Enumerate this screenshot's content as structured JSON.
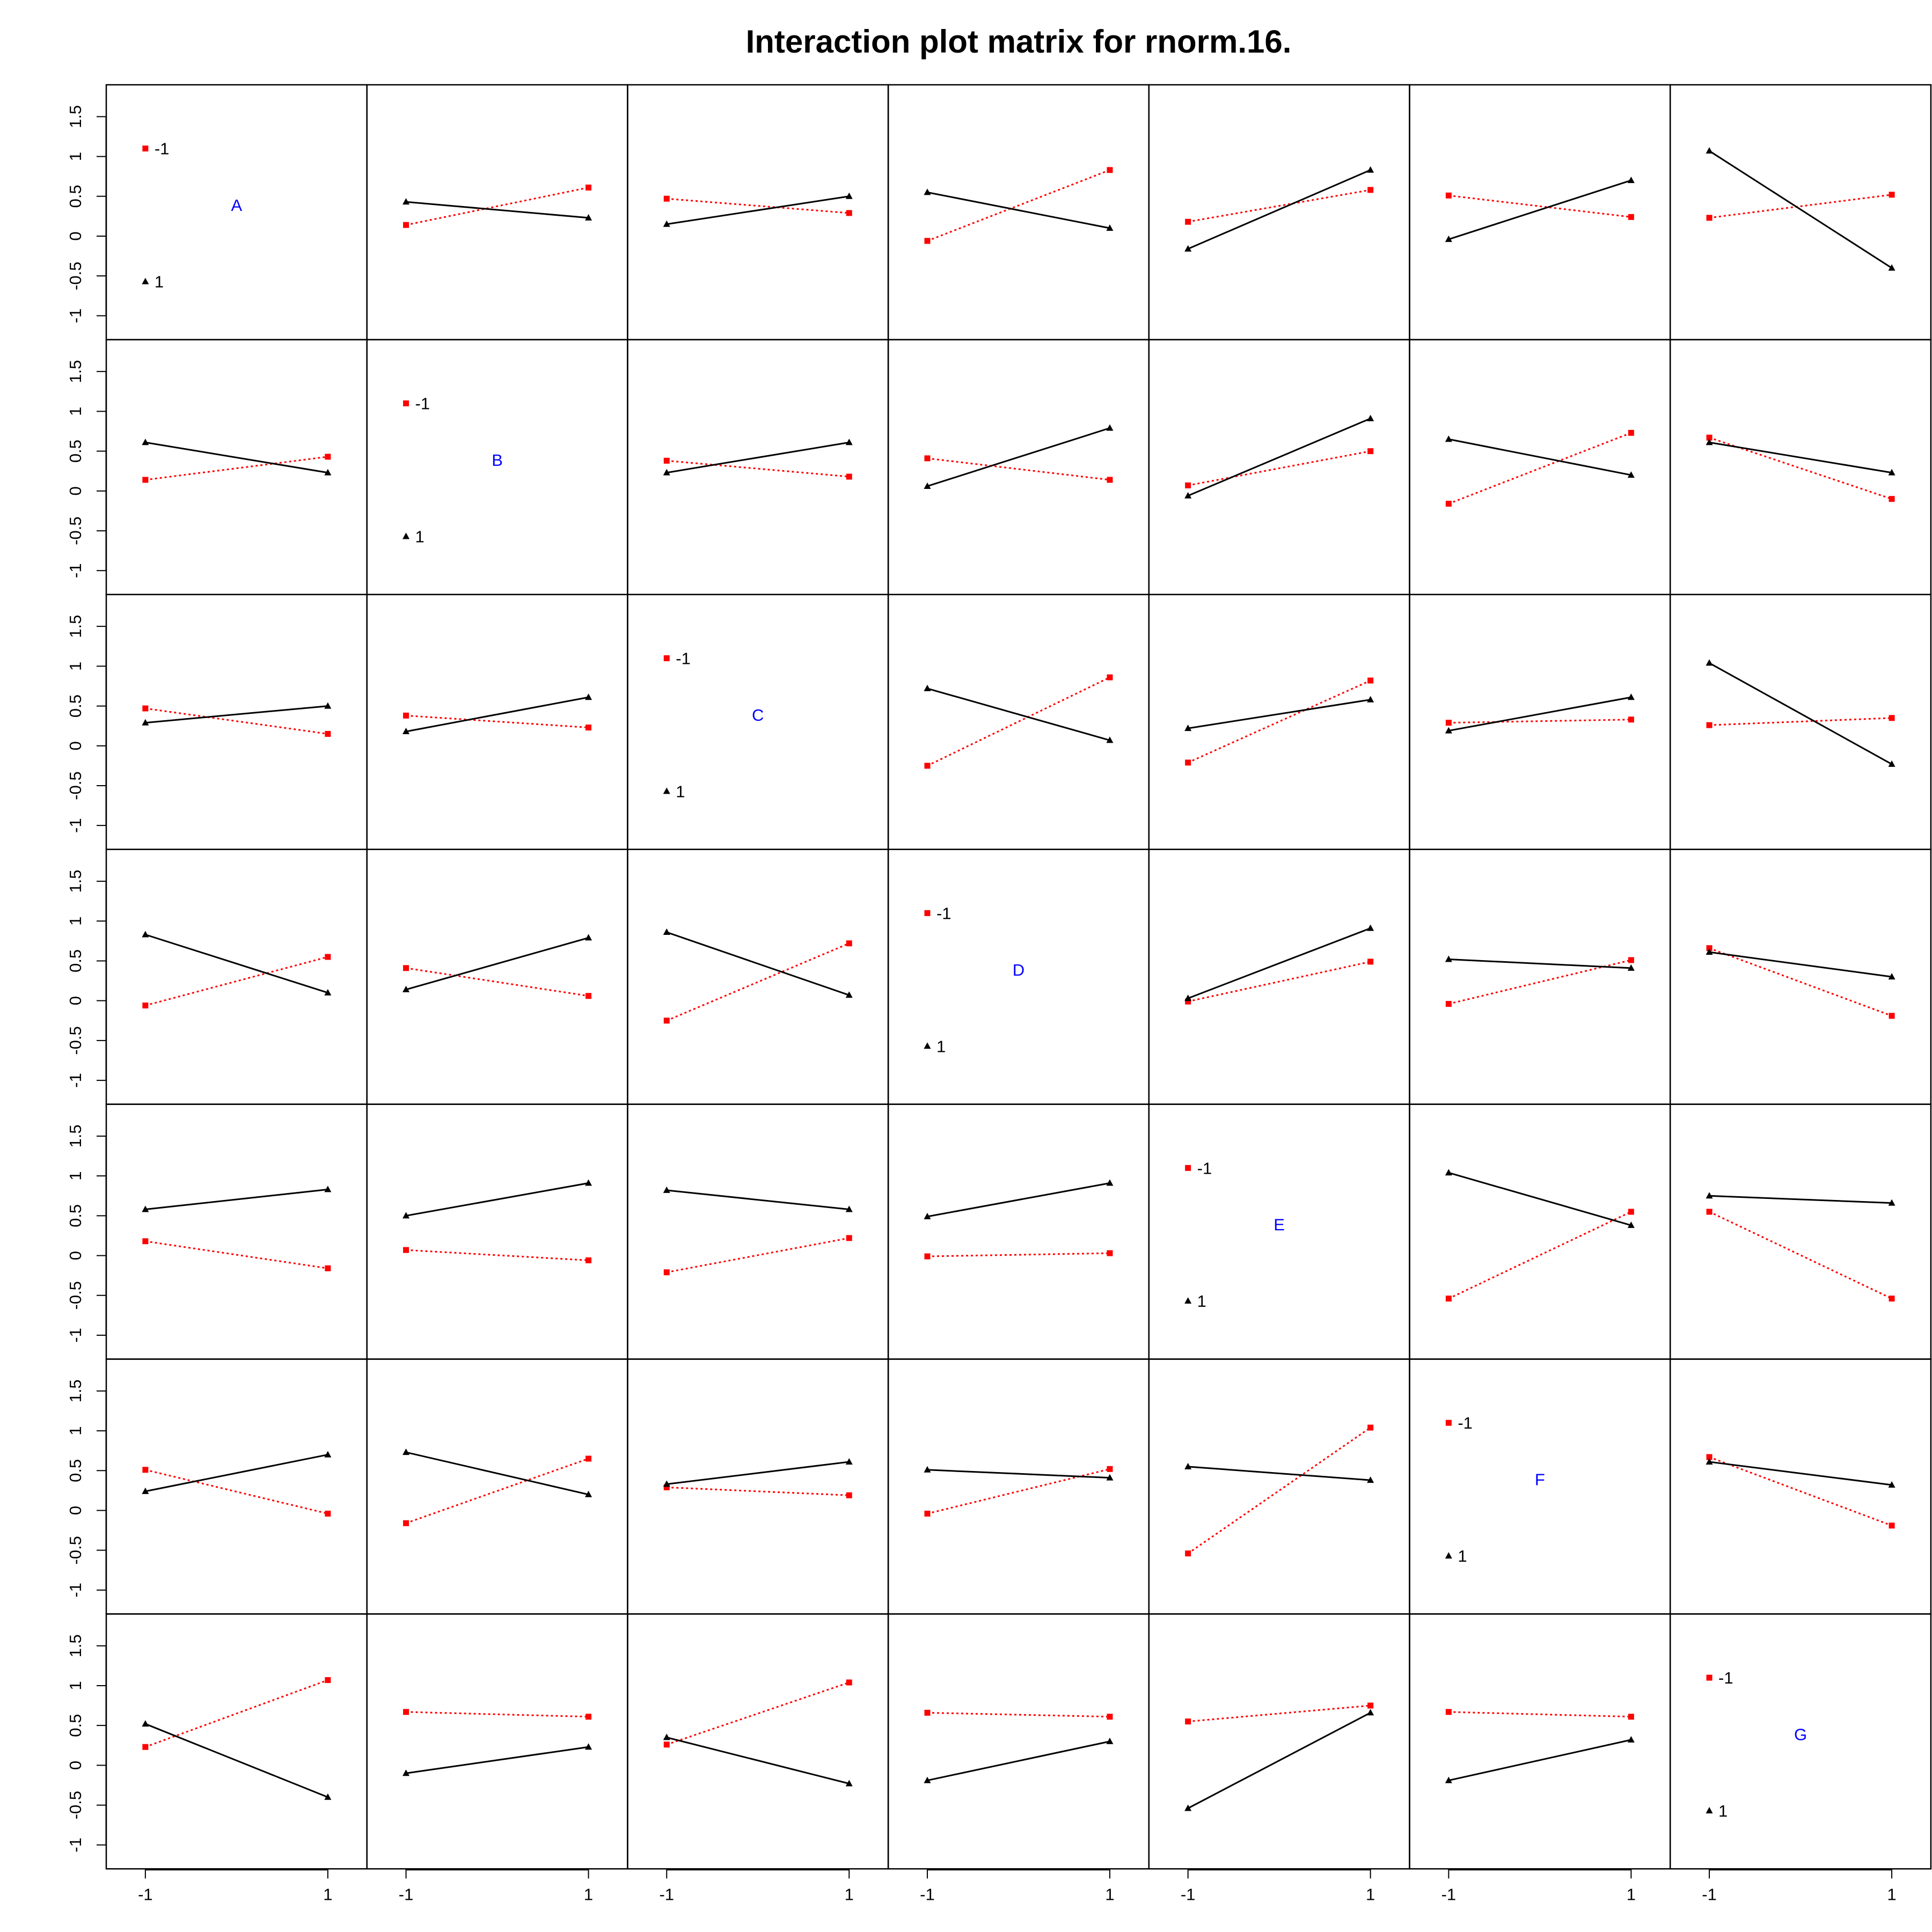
{
  "chart_data": {
    "type": "line",
    "title": "Interaction plot matrix for rnorm.16.",
    "factors": [
      "A",
      "B",
      "C",
      "D",
      "E",
      "F",
      "G"
    ],
    "x_levels": [
      "-1",
      "1"
    ],
    "trace_levels": [
      "-1",
      "1"
    ],
    "x_ticks": [
      "-1",
      "1"
    ],
    "y_ticks": [
      "-1",
      "-0.5",
      "0",
      "0.5",
      "1",
      "1.5"
    ],
    "ylim": [
      -1.3,
      1.9
    ],
    "series_styles": [
      {
        "level": "-1",
        "color": "#ff0000",
        "line": "dotted",
        "marker": "square"
      },
      {
        "level": "1",
        "color": "#000000",
        "line": "solid",
        "marker": "triangle"
      }
    ],
    "panels": [
      {
        "row": 1,
        "col": 2,
        "minus": [
          0.14,
          0.61
        ],
        "plus": [
          0.43,
          0.23
        ]
      },
      {
        "row": 1,
        "col": 3,
        "minus": [
          0.47,
          0.29
        ],
        "plus": [
          0.15,
          0.5
        ]
      },
      {
        "row": 1,
        "col": 4,
        "minus": [
          -0.06,
          0.83
        ],
        "plus": [
          0.55,
          0.1
        ]
      },
      {
        "row": 1,
        "col": 5,
        "minus": [
          0.18,
          0.58
        ],
        "plus": [
          -0.16,
          0.83
        ]
      },
      {
        "row": 1,
        "col": 6,
        "minus": [
          0.51,
          0.24
        ],
        "plus": [
          -0.04,
          0.7
        ]
      },
      {
        "row": 1,
        "col": 7,
        "minus": [
          0.23,
          0.52
        ],
        "plus": [
          1.07,
          -0.4
        ]
      },
      {
        "row": 2,
        "col": 1,
        "minus": [
          0.14,
          0.43
        ],
        "plus": [
          0.61,
          0.23
        ]
      },
      {
        "row": 2,
        "col": 3,
        "minus": [
          0.38,
          0.18
        ],
        "plus": [
          0.23,
          0.61
        ]
      },
      {
        "row": 2,
        "col": 4,
        "minus": [
          0.41,
          0.14
        ],
        "plus": [
          0.06,
          0.79
        ]
      },
      {
        "row": 2,
        "col": 5,
        "minus": [
          0.07,
          0.5
        ],
        "plus": [
          -0.06,
          0.91
        ]
      },
      {
        "row": 2,
        "col": 6,
        "minus": [
          -0.16,
          0.73
        ],
        "plus": [
          0.65,
          0.2
        ]
      },
      {
        "row": 2,
        "col": 7,
        "minus": [
          0.67,
          -0.1
        ],
        "plus": [
          0.61,
          0.23
        ]
      },
      {
        "row": 3,
        "col": 1,
        "minus": [
          0.47,
          0.15
        ],
        "plus": [
          0.29,
          0.5
        ]
      },
      {
        "row": 3,
        "col": 2,
        "minus": [
          0.38,
          0.23
        ],
        "plus": [
          0.18,
          0.61
        ]
      },
      {
        "row": 3,
        "col": 4,
        "minus": [
          -0.25,
          0.86
        ],
        "plus": [
          0.72,
          0.07
        ]
      },
      {
        "row": 3,
        "col": 5,
        "minus": [
          -0.21,
          0.82
        ],
        "plus": [
          0.22,
          0.58
        ]
      },
      {
        "row": 3,
        "col": 6,
        "minus": [
          0.29,
          0.33
        ],
        "plus": [
          0.19,
          0.61
        ]
      },
      {
        "row": 3,
        "col": 7,
        "minus": [
          0.26,
          0.35
        ],
        "plus": [
          1.04,
          -0.23
        ]
      },
      {
        "row": 4,
        "col": 1,
        "minus": [
          -0.06,
          0.55
        ],
        "plus": [
          0.83,
          0.1
        ]
      },
      {
        "row": 4,
        "col": 2,
        "minus": [
          0.41,
          0.06
        ],
        "plus": [
          0.14,
          0.79
        ]
      },
      {
        "row": 4,
        "col": 3,
        "minus": [
          -0.25,
          0.72
        ],
        "plus": [
          0.86,
          0.07
        ]
      },
      {
        "row": 4,
        "col": 5,
        "minus": [
          -0.01,
          0.49
        ],
        "plus": [
          0.03,
          0.91
        ]
      },
      {
        "row": 4,
        "col": 6,
        "minus": [
          -0.04,
          0.51
        ],
        "plus": [
          0.52,
          0.41
        ]
      },
      {
        "row": 4,
        "col": 7,
        "minus": [
          0.66,
          -0.19
        ],
        "plus": [
          0.61,
          0.3
        ]
      },
      {
        "row": 5,
        "col": 1,
        "minus": [
          0.18,
          -0.16
        ],
        "plus": [
          0.58,
          0.83
        ]
      },
      {
        "row": 5,
        "col": 2,
        "minus": [
          0.07,
          -0.06
        ],
        "plus": [
          0.5,
          0.91
        ]
      },
      {
        "row": 5,
        "col": 3,
        "minus": [
          -0.21,
          0.22
        ],
        "plus": [
          0.82,
          0.58
        ]
      },
      {
        "row": 5,
        "col": 4,
        "minus": [
          -0.01,
          0.03
        ],
        "plus": [
          0.49,
          0.91
        ]
      },
      {
        "row": 5,
        "col": 6,
        "minus": [
          -0.54,
          0.55
        ],
        "plus": [
          1.04,
          0.38
        ]
      },
      {
        "row": 5,
        "col": 7,
        "minus": [
          0.55,
          -0.54
        ],
        "plus": [
          0.75,
          0.66
        ]
      },
      {
        "row": 6,
        "col": 1,
        "minus": [
          0.51,
          -0.04
        ],
        "plus": [
          0.24,
          0.7
        ]
      },
      {
        "row": 6,
        "col": 2,
        "minus": [
          -0.16,
          0.65
        ],
        "plus": [
          0.73,
          0.2
        ]
      },
      {
        "row": 6,
        "col": 3,
        "minus": [
          0.29,
          0.19
        ],
        "plus": [
          0.33,
          0.61
        ]
      },
      {
        "row": 6,
        "col": 4,
        "minus": [
          -0.04,
          0.52
        ],
        "plus": [
          0.51,
          0.41
        ]
      },
      {
        "row": 6,
        "col": 5,
        "minus": [
          -0.54,
          1.04
        ],
        "plus": [
          0.55,
          0.38
        ]
      },
      {
        "row": 6,
        "col": 7,
        "minus": [
          0.67,
          -0.19
        ],
        "plus": [
          0.61,
          0.32
        ]
      },
      {
        "row": 7,
        "col": 1,
        "minus": [
          0.23,
          1.07
        ],
        "plus": [
          0.52,
          -0.4
        ]
      },
      {
        "row": 7,
        "col": 2,
        "minus": [
          0.67,
          0.61
        ],
        "plus": [
          -0.1,
          0.23
        ]
      },
      {
        "row": 7,
        "col": 3,
        "minus": [
          0.26,
          1.04
        ],
        "plus": [
          0.35,
          -0.23
        ]
      },
      {
        "row": 7,
        "col": 4,
        "minus": [
          0.66,
          0.61
        ],
        "plus": [
          -0.19,
          0.3
        ]
      },
      {
        "row": 7,
        "col": 5,
        "minus": [
          0.55,
          0.75
        ],
        "plus": [
          -0.54,
          0.66
        ]
      },
      {
        "row": 7,
        "col": 6,
        "minus": [
          0.67,
          0.61
        ],
        "plus": [
          -0.19,
          0.32
        ]
      }
    ]
  }
}
